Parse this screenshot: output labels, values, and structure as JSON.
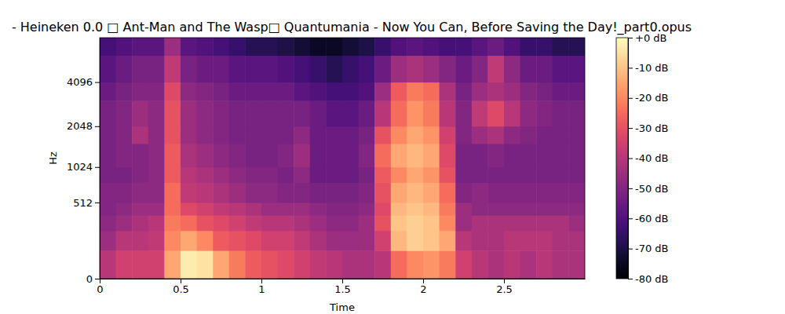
{
  "chart_data": {
    "type": "heatmap",
    "title": "- Heineken 0.0 □ Ant-Man and The Wasp□ Quantumania - Now You Can, Before Saving the Day!_part0.opus",
    "x_label": "Time",
    "y_label": "Hz",
    "log": "y",
    "color": "magma",
    "xlim": [
      0,
      3
    ],
    "ylim": [
      0,
      8000
    ],
    "xticks": [
      0,
      0.5,
      1,
      1.5,
      2,
      2.5
    ],
    "yticks": [
      0,
      512,
      1024,
      2048,
      4096
    ],
    "x": [
      0,
      0.1,
      0.2,
      0.3,
      0.4,
      0.5,
      0.6,
      0.7,
      0.8,
      0.9,
      1.0,
      1.1,
      1.2,
      1.3,
      1.4,
      1.5,
      1.6,
      1.7,
      1.8,
      1.9,
      2.0,
      2.1,
      2.2,
      2.3,
      2.4,
      2.5,
      2.6,
      2.7,
      2.8,
      2.9,
      3.0
    ],
    "y": [
      0,
      128,
      256,
      384,
      512,
      768,
      1024,
      1536,
      2048,
      3072,
      4096,
      6144,
      8000
    ],
    "z": [
      [
        -40,
        -35,
        -35,
        -35,
        -15,
        -3,
        -5,
        -15,
        -22,
        -28,
        -30,
        -32,
        -35,
        -38,
        -40,
        -42,
        -42,
        -40,
        -25,
        -20,
        -18,
        -22,
        -35,
        -40,
        -42,
        -40,
        -42,
        -40,
        -42,
        -42
      ],
      [
        -45,
        -40,
        -40,
        -38,
        -20,
        -15,
        -20,
        -28,
        -30,
        -32,
        -35,
        -35,
        -38,
        -42,
        -45,
        -45,
        -45,
        -35,
        -12,
        -8,
        -10,
        -15,
        -40,
        -42,
        -42,
        -40,
        -40,
        -40,
        -42,
        -42
      ],
      [
        -48,
        -45,
        -42,
        -40,
        -22,
        -25,
        -30,
        -32,
        -35,
        -38,
        -40,
        -40,
        -42,
        -45,
        -48,
        -48,
        -45,
        -30,
        -10,
        -8,
        -10,
        -20,
        -45,
        -42,
        -42,
        -42,
        -42,
        -42,
        -42,
        -45
      ],
      [
        -50,
        -48,
        -45,
        -45,
        -25,
        -32,
        -35,
        -38,
        -40,
        -42,
        -45,
        -45,
        -45,
        -48,
        -50,
        -50,
        -48,
        -32,
        -12,
        -10,
        -12,
        -22,
        -45,
        -48,
        -48,
        -48,
        -48,
        -48,
        -48,
        -48
      ],
      [
        -50,
        -50,
        -48,
        -48,
        -25,
        -38,
        -40,
        -42,
        -45,
        -48,
        -48,
        -50,
        -50,
        -52,
        -52,
        -52,
        -50,
        -30,
        -15,
        -12,
        -15,
        -25,
        -50,
        -48,
        -50,
        -50,
        -50,
        -50,
        -50,
        -50
      ],
      [
        -52,
        -52,
        -50,
        -48,
        -28,
        -40,
        -42,
        -45,
        -48,
        -50,
        -50,
        -52,
        -48,
        -55,
        -55,
        -55,
        -52,
        -28,
        -20,
        -15,
        -18,
        -30,
        -52,
        -52,
        -52,
        -52,
        -52,
        -52,
        -52,
        -52
      ],
      [
        -52,
        -50,
        -50,
        -48,
        -28,
        -42,
        -45,
        -48,
        -50,
        -52,
        -52,
        -50,
        -45,
        -55,
        -55,
        -55,
        -50,
        -25,
        -15,
        -12,
        -15,
        -32,
        -52,
        -52,
        -50,
        -52,
        -52,
        -52,
        -52,
        -52
      ],
      [
        -52,
        -50,
        -42,
        -48,
        -30,
        -45,
        -48,
        -50,
        -52,
        -52,
        -52,
        -52,
        -48,
        -55,
        -55,
        -55,
        -52,
        -30,
        -20,
        -15,
        -18,
        -35,
        -50,
        -45,
        -42,
        -48,
        -50,
        -52,
        -52,
        -52
      ],
      [
        -52,
        -50,
        -45,
        -48,
        -30,
        -45,
        -48,
        -50,
        -52,
        -52,
        -52,
        -52,
        -52,
        -55,
        -58,
        -58,
        -55,
        -40,
        -25,
        -18,
        -22,
        -40,
        -50,
        -38,
        -32,
        -40,
        -48,
        -50,
        -52,
        -52
      ],
      [
        -55,
        -52,
        -50,
        -50,
        -32,
        -48,
        -50,
        -52,
        -55,
        -55,
        -55,
        -55,
        -58,
        -60,
        -62,
        -62,
        -60,
        -45,
        -28,
        -22,
        -25,
        -42,
        -52,
        -45,
        -42,
        -45,
        -50,
        -52,
        -55,
        -55
      ],
      [
        -58,
        -55,
        -52,
        -52,
        -38,
        -52,
        -55,
        -55,
        -58,
        -58,
        -58,
        -60,
        -62,
        -65,
        -68,
        -65,
        -62,
        -55,
        -45,
        -42,
        -45,
        -50,
        -55,
        -50,
        -38,
        -48,
        -55,
        -55,
        -58,
        -58
      ],
      [
        -62,
        -60,
        -58,
        -58,
        -45,
        -58,
        -60,
        -62,
        -65,
        -68,
        -68,
        -70,
        -72,
        -75,
        -75,
        -72,
        -70,
        -65,
        -60,
        -58,
        -60,
        -62,
        -62,
        -58,
        -55,
        -60,
        -65,
        -65,
        -68,
        -68
      ]
    ],
    "colorbar": {
      "range": [
        -80,
        0
      ],
      "ticks": [
        {
          "value": 0,
          "label": "+0 dB"
        },
        {
          "value": -10,
          "label": "-10 dB"
        },
        {
          "value": -20,
          "label": "-20 dB"
        },
        {
          "value": -30,
          "label": "-30 dB"
        },
        {
          "value": -40,
          "label": "-40 dB"
        },
        {
          "value": -50,
          "label": "-50 dB"
        },
        {
          "value": -60,
          "label": "-60 dB"
        },
        {
          "value": -70,
          "label": "-70 dB"
        },
        {
          "value": -80,
          "label": "-80 dB"
        }
      ]
    }
  }
}
